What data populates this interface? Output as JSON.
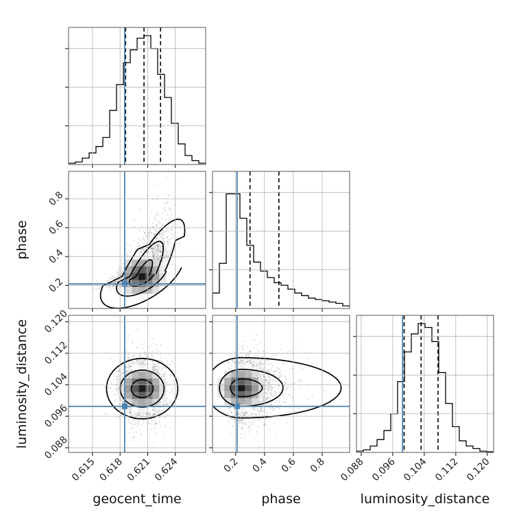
{
  "chart_data": {
    "type": "corner",
    "parameters": [
      "geocent_time",
      "phase",
      "luminosity_distance"
    ],
    "truths": {
      "geocent_time": 0.6185,
      "phase": 0.21,
      "luminosity_distance": 0.0985
    },
    "colors": {
      "truth": "#4682b4",
      "hist": "#000000",
      "grid": "#b0b0b0",
      "points": "#7f7f7f"
    },
    "grid": true,
    "axes": {
      "geocent_time": {
        "label": "geocent_time",
        "range": [
          0.6124,
          0.6273
        ],
        "ticks": [
          0.615,
          0.618,
          0.621,
          0.624
        ],
        "tick_labels": [
          "0.615",
          "0.618",
          "0.621",
          "0.624"
        ]
      },
      "phase": {
        "label": "phase",
        "range": [
          0.04,
          0.99
        ],
        "ticks": [
          0.2,
          0.4,
          0.6,
          0.8
        ],
        "tick_labels": [
          "0.2",
          "0.4",
          "0.6",
          "0.8"
        ]
      },
      "luminosity_distance": {
        "label": "luminosity_distance",
        "range": [
          0.0868,
          0.1216
        ],
        "ticks": [
          0.088,
          0.096,
          0.104,
          0.112,
          0.12
        ],
        "tick_labels": [
          "0.088",
          "0.096",
          "0.104",
          "0.112",
          "0.120"
        ]
      }
    },
    "marginals": {
      "geocent_time": {
        "quantiles": [
          0.6186,
          0.6206,
          0.6224
        ],
        "counts": [
          0.01,
          0.02,
          0.05,
          0.09,
          0.14,
          0.21,
          0.42,
          0.62,
          0.79,
          0.89,
          0.98,
          1.0,
          0.9,
          0.7,
          0.52,
          0.32,
          0.16,
          0.07,
          0.03,
          0.01
        ]
      },
      "phase": {
        "quantiles": [
          0.21,
          0.3,
          0.5
        ],
        "counts": [
          0.12,
          0.35,
          0.89,
          0.89,
          0.7,
          0.49,
          0.36,
          0.29,
          0.24,
          0.2,
          0.18,
          0.15,
          0.12,
          0.1,
          0.08,
          0.07,
          0.06,
          0.05,
          0.04,
          0.02
        ]
      },
      "luminosity_distance": {
        "quantiles": [
          0.0989,
          0.1032,
          0.1075
        ],
        "counts": [
          0.01,
          0.02,
          0.05,
          0.1,
          0.17,
          0.3,
          0.55,
          0.78,
          0.92,
          1.0,
          0.97,
          0.86,
          0.62,
          0.38,
          0.2,
          0.09,
          0.05,
          0.03,
          0.01,
          0.005
        ]
      }
    },
    "joint": [
      {
        "x": "geocent_time",
        "y": "phase",
        "mean": [
          0.6204,
          0.3
        ],
        "sd": [
          0.0014,
          0.14
        ],
        "rho": 0.6
      },
      {
        "x": "geocent_time",
        "y": "luminosity_distance",
        "mean": [
          0.6204,
          0.103
        ],
        "sd": [
          0.00125,
          0.004
        ],
        "rho": 0.0
      },
      {
        "x": "phase",
        "y": "luminosity_distance",
        "mean": [
          0.26,
          0.1032
        ],
        "sd": [
          0.12,
          0.004
        ],
        "rho": -0.05
      }
    ]
  }
}
